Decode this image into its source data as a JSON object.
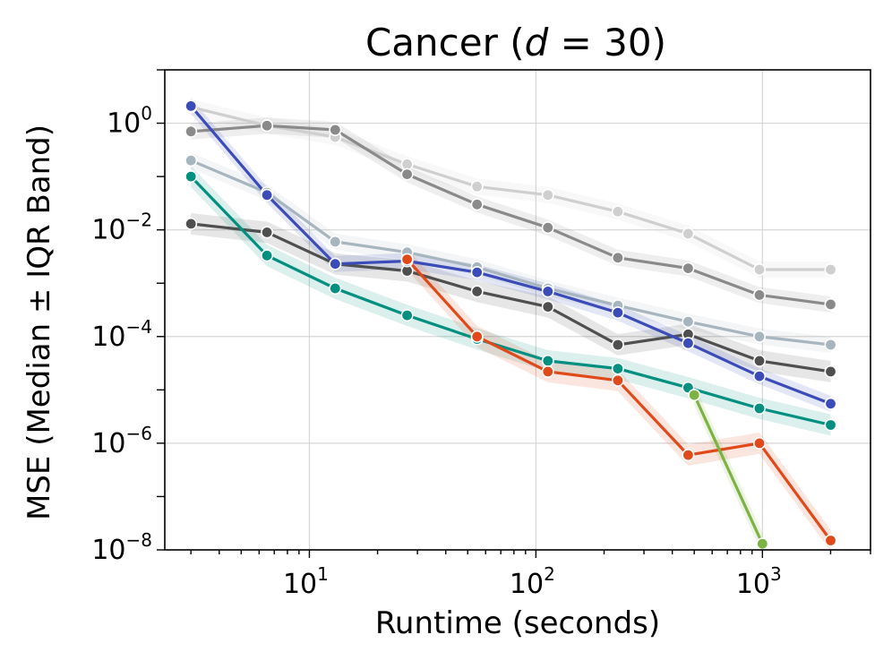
{
  "chart_data": {
    "type": "line",
    "title_prefix": "Cancer (",
    "title_var": "d",
    "title_suffix": " = 30)",
    "xlabel": "Runtime (seconds)",
    "ylabel": "MSE (Median ± IQR Band)",
    "xscale": "log",
    "yscale": "log",
    "xlim": [
      2.3,
      3000
    ],
    "ylim": [
      1e-08,
      10
    ],
    "grid": true,
    "x_ticks": [
      {
        "value": 10,
        "base": "10",
        "exp": "1"
      },
      {
        "value": 100,
        "base": "10",
        "exp": "2"
      },
      {
        "value": 1000,
        "base": "10",
        "exp": "3"
      }
    ],
    "y_ticks": [
      {
        "value": 1,
        "base": "10",
        "exp": "0"
      },
      {
        "value": 0.01,
        "base": "10",
        "exp": "−2"
      },
      {
        "value": 0.0001,
        "base": "10",
        "exp": "−4"
      },
      {
        "value": 1e-06,
        "base": "10",
        "exp": "−6"
      },
      {
        "value": 1e-08,
        "base": "10",
        "exp": "−8"
      }
    ],
    "series": [
      {
        "name": "light-gray",
        "color": "#cfcfcf",
        "x": [
          3.0,
          6.5,
          13,
          27,
          55,
          113,
          230,
          470,
          970,
          2000
        ],
        "y": [
          2.0,
          0.9,
          0.55,
          0.17,
          0.065,
          0.045,
          0.022,
          0.0085,
          0.0018,
          0.0018
        ],
        "band": 0.3
      },
      {
        "name": "medium-gray",
        "color": "#8a8a8a",
        "x": [
          3.0,
          6.5,
          13,
          27,
          55,
          113,
          230,
          470,
          970,
          2000
        ],
        "y": [
          0.7,
          0.9,
          0.75,
          0.11,
          0.03,
          0.011,
          0.003,
          0.0019,
          0.0006,
          0.0004
        ],
        "band": 0.3
      },
      {
        "name": "blue-gray",
        "color": "#a7b5bf",
        "x": [
          3.0,
          6.5,
          13,
          27,
          55,
          113,
          230,
          470,
          970,
          2000
        ],
        "y": [
          0.2,
          0.05,
          0.006,
          0.0038,
          0.002,
          0.0008,
          0.00038,
          0.00019,
          0.0001,
          7e-05
        ],
        "band": 0.3
      },
      {
        "name": "dark-gray",
        "color": "#4f4f4f",
        "x": [
          3.0,
          6.5,
          13,
          27,
          55,
          113,
          230,
          470,
          970,
          2000
        ],
        "y": [
          0.013,
          0.009,
          0.0023,
          0.0017,
          0.0007,
          0.00036,
          7e-05,
          0.00011,
          3.5e-05,
          2.2e-05
        ],
        "band": 0.4
      },
      {
        "name": "blue",
        "color": "#3b4cb8",
        "x": [
          3.0,
          6.5,
          13,
          27,
          55,
          113,
          230,
          470,
          970,
          2000
        ],
        "y": [
          2.1,
          0.045,
          0.0023,
          0.0026,
          0.0016,
          0.0007,
          0.00028,
          7.5e-05,
          1.8e-05,
          5.5e-06
        ],
        "band": 0.3
      },
      {
        "name": "teal",
        "color": "#009080",
        "x": [
          3.0,
          6.5,
          13,
          27,
          55,
          113,
          230,
          470,
          970,
          2000
        ],
        "y": [
          0.1,
          0.0033,
          0.0008,
          0.00025,
          9e-05,
          3.5e-05,
          2.5e-05,
          1.1e-05,
          4.5e-06,
          2.2e-06
        ],
        "band": 0.4
      },
      {
        "name": "red-orange",
        "color": "#e04a1a",
        "x": [
          27,
          55,
          113,
          230,
          470,
          970,
          2000
        ],
        "y": [
          0.0028,
          0.0001,
          2.2e-05,
          1.5e-05,
          6e-07,
          1e-06,
          1.5e-08
        ],
        "band": 0.4
      },
      {
        "name": "green",
        "color": "#7cb342",
        "x": [
          500,
          1000
        ],
        "y": [
          8e-06,
          1.3e-08
        ],
        "band": 0.4
      }
    ]
  }
}
